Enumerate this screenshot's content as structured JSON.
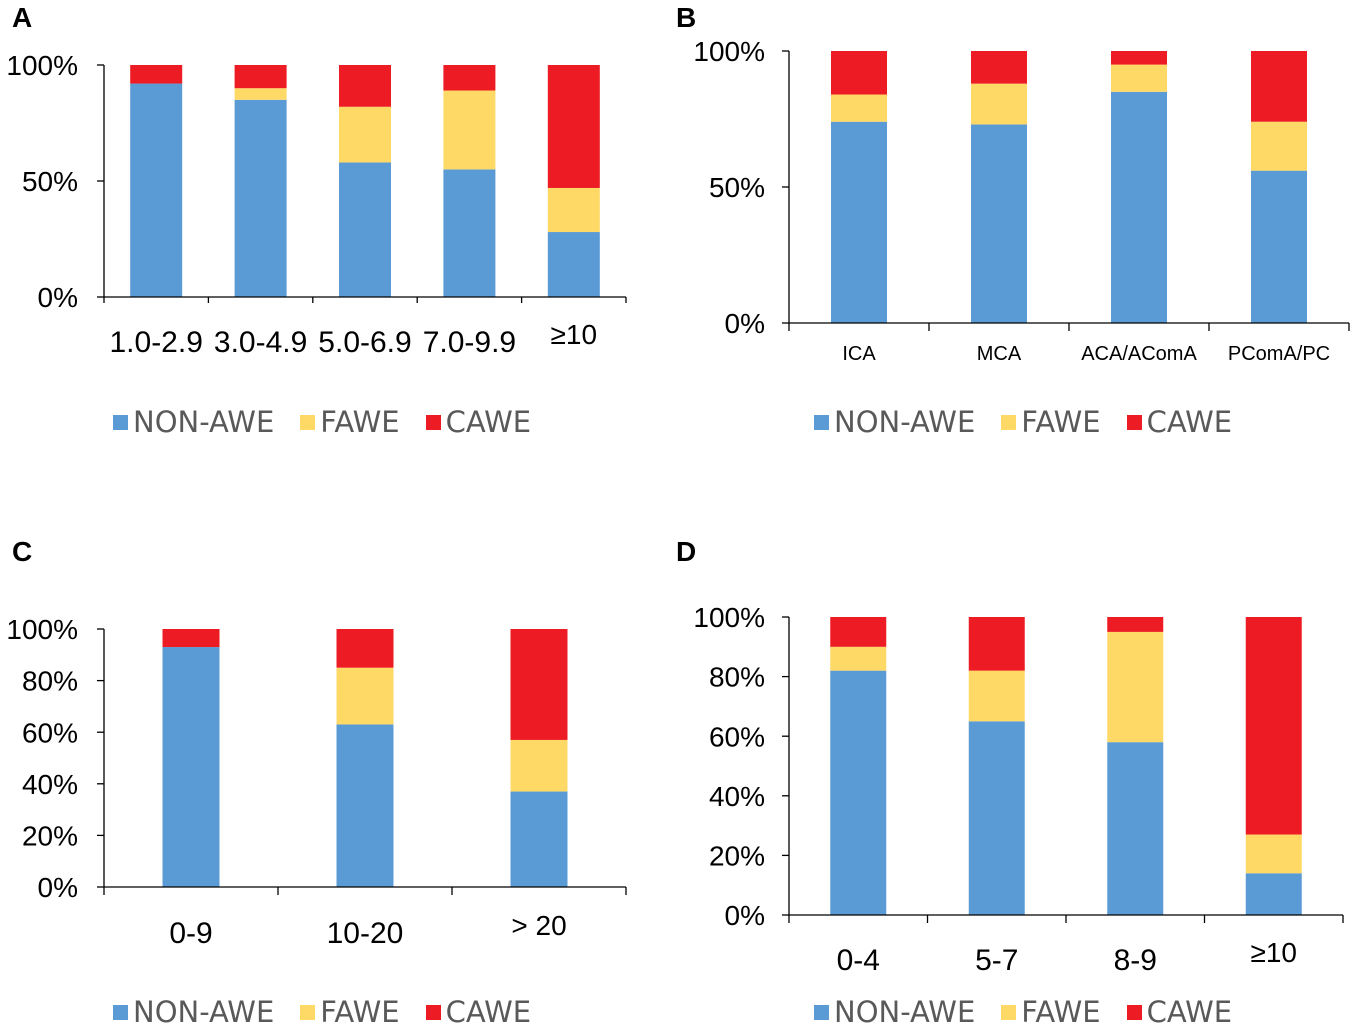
{
  "colors": {
    "non_awe": "#5B9BD5",
    "fawe": "#FFD966",
    "cawe": "#ED1C24"
  },
  "chart_data": [
    {
      "panel": "A",
      "type": "bar",
      "stacked": true,
      "categories": [
        "1.0-2.9",
        "3.0-4.9",
        "5.0-6.9",
        "7.0-9.9",
        "≥10"
      ],
      "series": [
        {
          "name": "NON-AWE",
          "values": [
            92,
            85,
            58,
            55,
            28
          ]
        },
        {
          "name": "FAWE",
          "values": [
            0,
            5,
            24,
            34,
            19
          ]
        },
        {
          "name": "CAWE",
          "values": [
            8,
            10,
            18,
            11,
            53
          ]
        }
      ],
      "yticks": [
        "0%",
        "50%",
        "100%"
      ],
      "ylim": [
        0,
        100
      ],
      "legend": [
        "NON-AWE",
        "FAWE",
        "CAWE"
      ]
    },
    {
      "panel": "B",
      "type": "bar",
      "stacked": true,
      "categories": [
        "ICA",
        "MCA",
        "ACA/AComA",
        "PComA/PC"
      ],
      "series": [
        {
          "name": "NON-AWE",
          "values": [
            74,
            73,
            85,
            56
          ]
        },
        {
          "name": "FAWE",
          "values": [
            10,
            15,
            10,
            18
          ]
        },
        {
          "name": "CAWE",
          "values": [
            16,
            12,
            5,
            26
          ]
        }
      ],
      "yticks": [
        "0%",
        "50%",
        "100%"
      ],
      "ylim": [
        0,
        100
      ],
      "legend": [
        "NON-AWE",
        "FAWE",
        "CAWE"
      ]
    },
    {
      "panel": "C",
      "type": "bar",
      "stacked": true,
      "categories": [
        "0-9",
        "10-20",
        "> 20"
      ],
      "series": [
        {
          "name": "NON-AWE",
          "values": [
            93,
            63,
            37
          ]
        },
        {
          "name": "FAWE",
          "values": [
            0,
            22,
            20
          ]
        },
        {
          "name": "CAWE",
          "values": [
            7,
            15,
            43
          ]
        }
      ],
      "yticks": [
        "0%",
        "20%",
        "40%",
        "60%",
        "80%",
        "100%"
      ],
      "ylim": [
        0,
        100
      ],
      "legend": [
        "NON-AWE",
        "FAWE",
        "CAWE"
      ]
    },
    {
      "panel": "D",
      "type": "bar",
      "stacked": true,
      "categories": [
        "0-4",
        "5-7",
        "8-9",
        "≥10"
      ],
      "series": [
        {
          "name": "NON-AWE",
          "values": [
            82,
            65,
            58,
            14
          ]
        },
        {
          "name": "FAWE",
          "values": [
            8,
            17,
            37,
            13
          ]
        },
        {
          "name": "CAWE",
          "values": [
            10,
            18,
            5,
            73
          ]
        }
      ],
      "yticks": [
        "0%",
        "20%",
        "40%",
        "60%",
        "80%",
        "100%"
      ],
      "ylim": [
        0,
        100
      ],
      "legend": [
        "NON-AWE",
        "FAWE",
        "CAWE"
      ]
    }
  ]
}
